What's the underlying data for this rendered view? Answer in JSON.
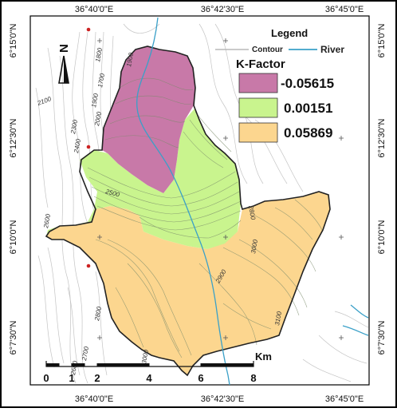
{
  "coordinates": {
    "top": [
      "36°40'0\"E",
      "36°42'30\"E",
      "36°45'0\"E"
    ],
    "bottom": [
      "36°40'0\"E",
      "36°42'30\"E",
      "36°45'0\"E"
    ],
    "left": [
      "6°15'0\"N",
      "6°12'30\"N",
      "6°10'0\"N",
      "6°7'30\"N"
    ],
    "right": [
      "6°15'0\"N",
      "6°12'30\"N",
      "6°10'0\"N",
      "6°7'30\"N"
    ]
  },
  "legend": {
    "title": "Legend",
    "contour_label": "Contour",
    "river_label": "River",
    "kfactor_title": "K-Factor",
    "classes": [
      {
        "label": "-0.05615",
        "color": "#c879a8"
      },
      {
        "label": "0.00151",
        "color": "#c9f48e"
      },
      {
        "label": "0.05869",
        "color": "#fcd68f"
      }
    ]
  },
  "contour_labels": [
    "1900",
    "1800",
    "1700",
    "1900",
    "2000",
    "2100",
    "2300",
    "2400",
    "2500",
    "2800",
    "2900",
    "3000",
    "3100",
    "2600",
    "2800",
    "3000",
    "2700",
    "2600"
  ],
  "scale_bar": {
    "ticks": [
      "0",
      "1",
      "2",
      "4",
      "6",
      "8"
    ],
    "unit": "Km"
  },
  "colors": {
    "river": "#3aa0c8",
    "contour": "#b8b8b8",
    "boundary": "#222222",
    "point": "#cc2222"
  }
}
